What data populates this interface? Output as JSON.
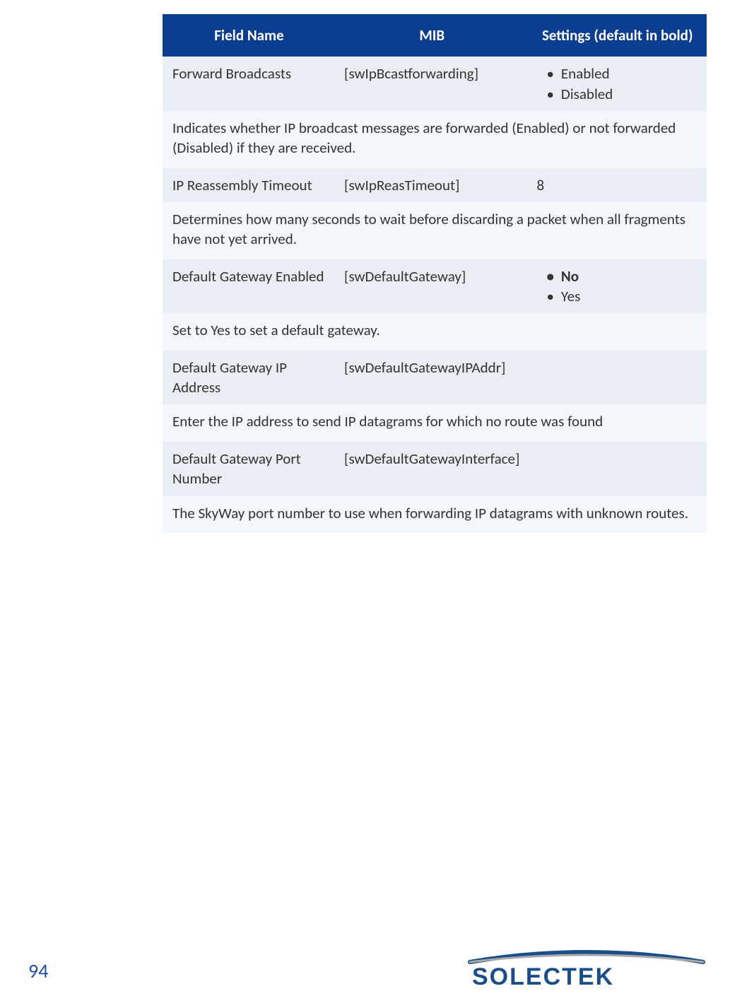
{
  "table": {
    "header": {
      "field_name": "Field Name",
      "mib": "MIB",
      "settings": "Settings (default in bold)"
    },
    "header_bg": "#0b3d91",
    "header_color": "#ffffff",
    "data_bg": "#e8eef4",
    "desc_bg": "#f3f7fb",
    "text_color": "#333333",
    "rows": [
      {
        "field": "Forward Broadcasts",
        "mib": "[swIpBcastforwarding]",
        "settings_type": "list",
        "options": [
          {
            "label": "Enabled",
            "bold": false
          },
          {
            "label": "Disabled",
            "bold": false
          }
        ],
        "description": "Indicates whether IP broadcast messages are forwarded (Enabled) or not forwarded (Disabled) if they are received."
      },
      {
        "field": "IP Reassembly Timeout",
        "mib": "[swIpReasTimeout]",
        "settings_type": "text",
        "settings_text": "8",
        "description": "Determines how many seconds to wait before discarding a packet when all fragments have not yet arrived."
      },
      {
        "field": "Default Gateway Enabled",
        "mib": "[swDefaultGateway]",
        "settings_type": "list",
        "options": [
          {
            "label": "No",
            "bold": true
          },
          {
            "label": "Yes",
            "bold": false
          }
        ],
        "description": "Set to Yes to set a default gateway."
      },
      {
        "field": "Default Gateway IP Address",
        "mib": "[swDefaultGatewayIPAddr]",
        "settings_type": "none",
        "description": "Enter the IP address to send IP datagrams for which no route was found"
      },
      {
        "field": "Default Gateway Port Number",
        "mib": "[swDefaultGatewayInterface]",
        "settings_type": "none",
        "description": "The SkyWay port number to use when forwarding IP datagrams with unknown routes."
      }
    ]
  },
  "page_number": "94",
  "logo": {
    "text": "SOLECTEK",
    "color": "#1b4d8a",
    "font_size": 32
  }
}
